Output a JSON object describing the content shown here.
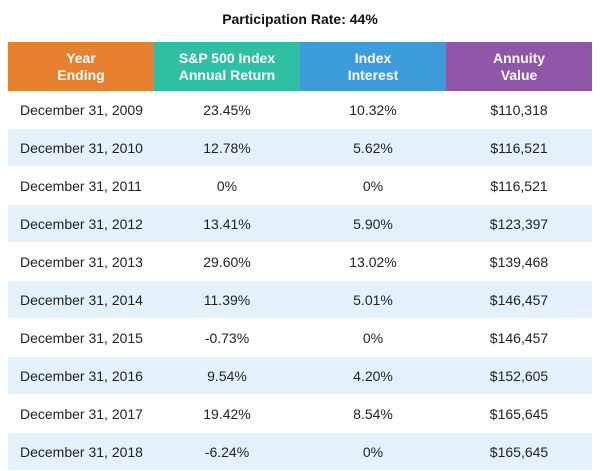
{
  "title": "Participation Rate: 44%",
  "colors": {
    "year": "#e8812f",
    "sp500": "#2fbfa3",
    "index": "#3c9bd9",
    "annuity": "#9056a8",
    "row_alt": "#e4f1fb"
  },
  "chart_data": {
    "type": "table",
    "title": "Participation Rate: 44%",
    "columns": [
      "Year\nEnding",
      "S&P 500 Index\nAnnual Return",
      "Index\nInterest",
      "Annuity\nValue"
    ],
    "rows": [
      [
        "December 31, 2009",
        "23.45%",
        "10.32%",
        "$110,318"
      ],
      [
        "December 31, 2010",
        "12.78%",
        "5.62%",
        "$116,521"
      ],
      [
        "December 31, 2011",
        "0%",
        "0%",
        "$116,521"
      ],
      [
        "December 31, 2012",
        "13.41%",
        "5.90%",
        "$123,397"
      ],
      [
        "December 31, 2013",
        "29.60%",
        "13.02%",
        "$139,468"
      ],
      [
        "December 31, 2014",
        "11.39%",
        "5.01%",
        "$146,457"
      ],
      [
        "December 31, 2015",
        "-0.73%",
        "0%",
        "$146,457"
      ],
      [
        "December 31, 2016",
        "9.54%",
        "4.20%",
        "$152,605"
      ],
      [
        "December 31, 2017",
        "19.42%",
        "8.54%",
        "$165,645"
      ],
      [
        "December 31, 2018",
        "-6.24%",
        "0%",
        "$165,645"
      ]
    ]
  }
}
